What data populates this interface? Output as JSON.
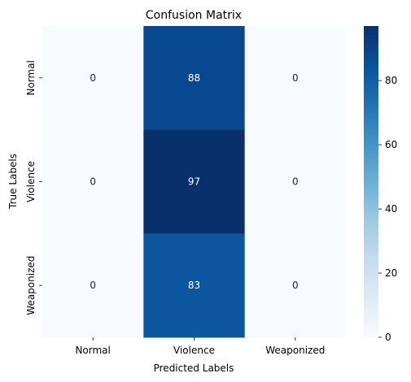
{
  "chart_data": {
    "type": "heatmap",
    "title": "Confusion Matrix",
    "xlabel": "Predicted Labels",
    "ylabel": "True Labels",
    "x_categories": [
      "Normal",
      "Violence",
      "Weaponized"
    ],
    "y_categories": [
      "Normal",
      "Violence",
      "Weaponized"
    ],
    "values": [
      [
        0,
        88,
        0
      ],
      [
        0,
        97,
        0
      ],
      [
        0,
        83,
        0
      ]
    ],
    "colorbar": {
      "min": 0,
      "max": 97,
      "ticks": [
        0,
        20,
        40,
        60,
        80
      ],
      "colormap": "Blues"
    }
  }
}
